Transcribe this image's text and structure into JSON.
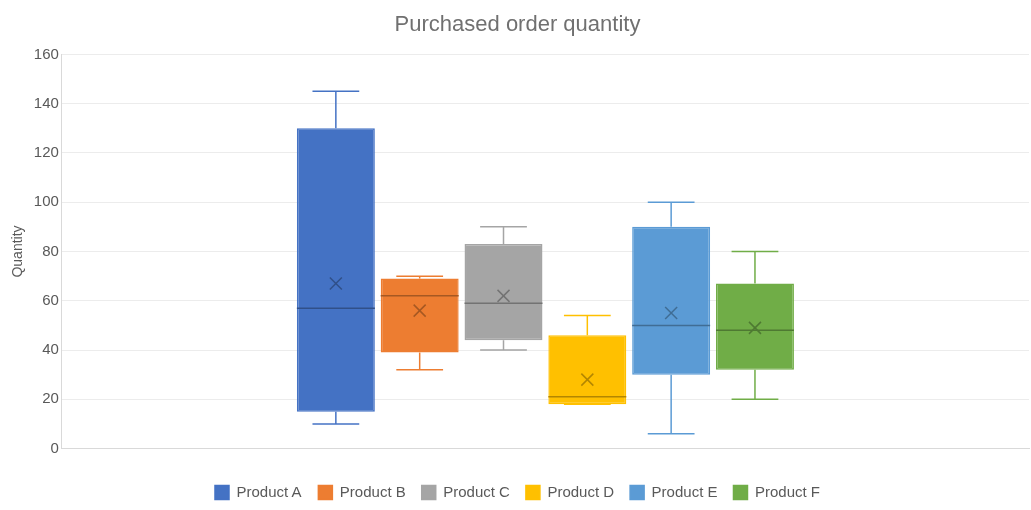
{
  "chart_data": {
    "type": "box",
    "title": "Purchased order quantity",
    "ylabel": "Quantity",
    "categories": [
      null
    ],
    "ylim": [
      0,
      160
    ],
    "yticks": [
      0,
      20,
      40,
      60,
      80,
      100,
      120,
      140,
      160
    ],
    "grid": "y",
    "legend": "bottom",
    "series": [
      {
        "name": "Product A",
        "color": "#4472c4",
        "boxes": [
          {
            "low": 10,
            "q1": 15,
            "median": 57,
            "q3": 130,
            "high": 145,
            "mean": 67
          }
        ]
      },
      {
        "name": "Product B",
        "color": "#ed7d31",
        "boxes": [
          {
            "low": 32,
            "q1": 39,
            "median": 62,
            "q3": 69,
            "high": 70,
            "mean": 56
          }
        ]
      },
      {
        "name": "Product C",
        "color": "#a5a5a5",
        "boxes": [
          {
            "low": 40,
            "q1": 44,
            "median": 59,
            "q3": 83,
            "high": 90,
            "mean": 62
          }
        ]
      },
      {
        "name": "Product D",
        "color": "#ffc000",
        "boxes": [
          {
            "low": 18,
            "q1": 18,
            "median": 21,
            "q3": 46,
            "high": 54,
            "mean": 28
          }
        ]
      },
      {
        "name": "Product E",
        "color": "#5b9bd5",
        "boxes": [
          {
            "low": 6,
            "q1": 30,
            "median": 50,
            "q3": 90,
            "high": 100,
            "mean": 55
          }
        ]
      },
      {
        "name": "Product F",
        "color": "#70ad47",
        "boxes": [
          {
            "low": 20,
            "q1": 32,
            "median": 48,
            "q3": 67,
            "high": 80,
            "mean": 49
          }
        ]
      }
    ]
  }
}
